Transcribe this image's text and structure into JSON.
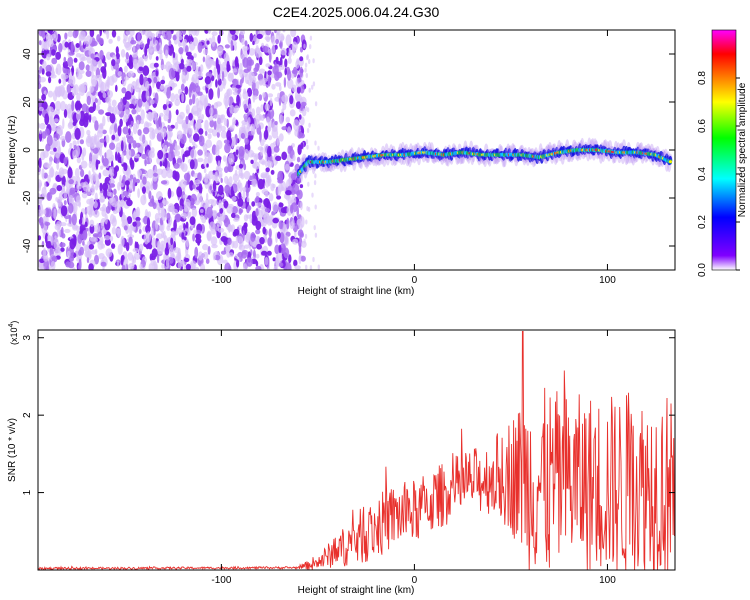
{
  "figure": {
    "title": "C2E4.2025.006.04.24.G30"
  },
  "chart_data": [
    {
      "type": "heatmap",
      "name": "spectrogram",
      "xlabel": "Height of straight line (km)",
      "ylabel": "Frequency (Hz)",
      "xlim": [
        -195,
        135
      ],
      "ylim": [
        -50,
        50
      ],
      "xticks": [
        -100,
        0,
        100
      ],
      "yticks": [
        -40,
        -20,
        0,
        20,
        40
      ],
      "noise_region_x": [
        -195,
        -57
      ],
      "signal_track": {
        "x": [
          -60,
          -55,
          -45,
          -35,
          -25,
          -15,
          -5,
          5,
          15,
          25,
          35,
          45,
          55,
          65,
          75,
          85,
          95,
          105,
          115,
          125,
          133
        ],
        "freq": [
          -10,
          -5,
          -5,
          -4,
          -3,
          -2,
          -2,
          -1,
          -2,
          -1,
          -2,
          -2,
          -2,
          -3,
          -1,
          0,
          0,
          -1,
          -1,
          -2,
          -5
        ]
      },
      "colorbar": {
        "label": "Normalized spectral amplitude",
        "range": [
          0,
          1
        ],
        "ticks": [
          "0.0",
          "0.2",
          "0.4",
          "0.6",
          "0.8"
        ],
        "colors": [
          "#ffffff",
          "#8000ff",
          "#0000ff",
          "#00ffff",
          "#00ff00",
          "#ffff00",
          "#ff8000",
          "#ff0000",
          "#ff00ff"
        ]
      }
    },
    {
      "type": "line",
      "name": "snr",
      "series": [
        {
          "name": "SNR",
          "color": "#e8302c"
        }
      ],
      "xlabel": "Height of straight line (km)",
      "ylabel": "SNR (10 * v/v)",
      "multiplier_label": "(x10",
      "multiplier_exp": "4",
      "xlim": [
        -195,
        135
      ],
      "ylim": [
        0,
        3.1
      ],
      "xticks": [
        -100,
        0,
        100
      ],
      "yticks": [
        1,
        2,
        3
      ],
      "envelope": {
        "x": [
          -195,
          -60,
          -50,
          -40,
          -30,
          -20,
          -10,
          0,
          10,
          20,
          30,
          40,
          50,
          55,
          60,
          70,
          80,
          90,
          100,
          110,
          120,
          130,
          135
        ],
        "mean": [
          0.02,
          0.03,
          0.1,
          0.25,
          0.4,
          0.55,
          0.7,
          0.75,
          0.9,
          1.05,
          1.15,
          1.2,
          1.25,
          1.2,
          1.15,
          1.1,
          1.15,
          1.1,
          1.1,
          1.05,
          1.1,
          1.1,
          1.05
        ],
        "spread": [
          0.01,
          0.01,
          0.08,
          0.15,
          0.25,
          0.3,
          0.3,
          0.3,
          0.3,
          0.3,
          0.3,
          0.35,
          0.55,
          0.7,
          0.85,
          0.9,
          0.8,
          0.85,
          0.85,
          0.9,
          0.85,
          0.9,
          0.8
        ]
      },
      "peak": {
        "x": 56,
        "y": 3.08
      }
    }
  ]
}
